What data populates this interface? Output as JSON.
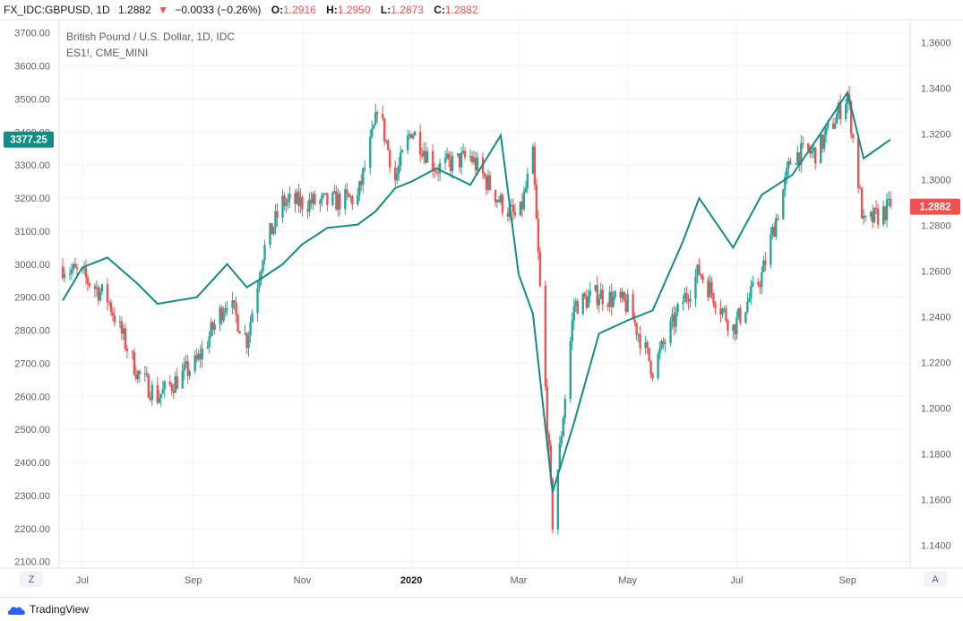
{
  "header": {
    "symbol": "FX_IDC:GBPUSD, 1D",
    "last": "1.2882",
    "arrow": "▼",
    "change": "−0.0033 (−0.26%)",
    "open_label": "O:",
    "open": "1.2916",
    "high_label": "H:",
    "high": "1.2950",
    "low_label": "L:",
    "low": "1.2873",
    "close_label": "C:",
    "close": "1.2882"
  },
  "legend": {
    "main_series": "British Pound / U.S. Dollar, 1D, IDC",
    "overlay_series": "ES1!, CME_MINI"
  },
  "left_axis": {
    "ticks": [
      "3700.00",
      "3600.00",
      "3500.00",
      "3400.00",
      "3300.00",
      "3200.00",
      "3100.00",
      "3000.00",
      "2900.00",
      "2800.00",
      "2700.00",
      "2600.00",
      "2500.00",
      "2400.00",
      "2300.00",
      "2200.00",
      "2100.00"
    ],
    "badge": "3377.25"
  },
  "right_axis": {
    "ticks": [
      "1.3600",
      "1.3400",
      "1.3200",
      "1.3000",
      "1.2800",
      "1.2600",
      "1.2400",
      "1.2200",
      "1.2000",
      "1.1800",
      "1.1600",
      "1.1400"
    ],
    "badge": "1.2882"
  },
  "time_axis": {
    "labels": [
      "Jul",
      "Sep",
      "Nov",
      "2020",
      "Mar",
      "May",
      "Jul",
      "Sep"
    ]
  },
  "buttons": {
    "left": "Z",
    "right": "A"
  },
  "footer": {
    "brand": "TradingView"
  },
  "colors": {
    "up": "#26a69a",
    "down": "#ef5350",
    "overlay": "#138d84",
    "grid": "#f0f3fa",
    "axis_text": "#5d606b",
    "badge_left": "#138d84",
    "badge_right": "#ef5350"
  },
  "chart_data": [
    {
      "type": "candlestick",
      "series_name": "British Pound / U.S. Dollar, 1D, IDC",
      "axis": "right",
      "ylim": [
        1.13,
        1.37
      ],
      "x": [
        "2019-06-20",
        "2019-07-01",
        "2019-07-15",
        "2019-08-01",
        "2019-08-12",
        "2019-09-03",
        "2019-09-20",
        "2019-10-01",
        "2019-10-10",
        "2019-10-21",
        "2019-11-01",
        "2019-11-15",
        "2019-12-02",
        "2019-12-12",
        "2019-12-13",
        "2019-12-23",
        "2020-01-01",
        "2020-01-15",
        "2020-02-03",
        "2020-02-20",
        "2020-03-01",
        "2020-03-09",
        "2020-03-20",
        "2020-04-01",
        "2020-04-15",
        "2020-05-01",
        "2020-05-15",
        "2020-06-01",
        "2020-06-10",
        "2020-06-29",
        "2020-07-15",
        "2020-08-01",
        "2020-08-15",
        "2020-09-01",
        "2020-09-10",
        "2020-09-25"
      ],
      "close": [
        1.262,
        1.258,
        1.248,
        1.215,
        1.205,
        1.22,
        1.248,
        1.23,
        1.268,
        1.29,
        1.29,
        1.29,
        1.292,
        1.325,
        1.333,
        1.3,
        1.322,
        1.305,
        1.31,
        1.29,
        1.282,
        1.31,
        1.15,
        1.245,
        1.25,
        1.245,
        1.217,
        1.247,
        1.26,
        1.235,
        1.258,
        1.311,
        1.312,
        1.337,
        1.28,
        1.288
      ],
      "last": {
        "open": 1.2916,
        "high": 1.295,
        "low": 1.2873,
        "close": 1.2882
      }
    },
    {
      "type": "line",
      "series_name": "ES1!, CME_MINI",
      "axis": "left",
      "ylim": [
        2080,
        3740
      ],
      "x": [
        "2019-06-20",
        "2019-07-01",
        "2019-07-15",
        "2019-08-01",
        "2019-08-12",
        "2019-09-03",
        "2019-09-20",
        "2019-10-01",
        "2019-10-10",
        "2019-10-21",
        "2019-11-01",
        "2019-11-15",
        "2019-12-02",
        "2019-12-12",
        "2019-12-23",
        "2020-01-01",
        "2020-01-15",
        "2020-02-03",
        "2020-02-20",
        "2020-03-01",
        "2020-03-09",
        "2020-03-20",
        "2020-04-01",
        "2020-04-15",
        "2020-05-01",
        "2020-05-15",
        "2020-06-01",
        "2020-06-10",
        "2020-06-29",
        "2020-07-15",
        "2020-08-01",
        "2020-08-15",
        "2020-09-01",
        "2020-09-10",
        "2020-09-25"
      ],
      "values": [
        2890,
        2990,
        3020,
        2940,
        2880,
        2900,
        3000,
        2930,
        2960,
        3000,
        3060,
        3110,
        3120,
        3160,
        3230,
        3250,
        3290,
        3240,
        3390,
        2970,
        2850,
        2310,
        2520,
        2790,
        2830,
        2860,
        3070,
        3200,
        3050,
        3210,
        3270,
        3380,
        3520,
        3320,
        3377.25
      ],
      "last": 3377.25
    }
  ]
}
